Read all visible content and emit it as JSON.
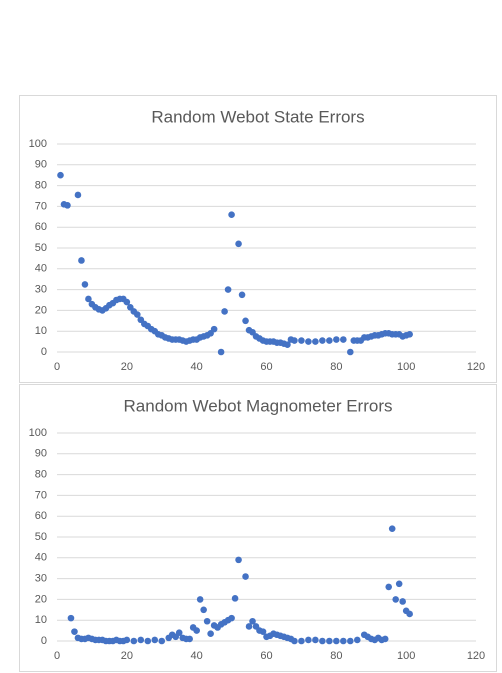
{
  "chart_data": [
    {
      "type": "scatter",
      "title": "Random Webot State Errors",
      "color": "#4472c4",
      "grid": true,
      "xlim": [
        0,
        120
      ],
      "xticks": [
        0,
        20,
        40,
        60,
        80,
        100,
        120
      ],
      "ylim": [
        0,
        100
      ],
      "yticks": [
        0,
        10,
        20,
        30,
        40,
        50,
        60,
        70,
        80,
        90,
        100
      ],
      "x": [
        1,
        2,
        3,
        6,
        7,
        8,
        9,
        10,
        11,
        12,
        13,
        14,
        15,
        16,
        17,
        18,
        19,
        20,
        21,
        22,
        23,
        24,
        25,
        26,
        27,
        28,
        29,
        30,
        31,
        32,
        33,
        34,
        35,
        36,
        37,
        38,
        39,
        40,
        41,
        42,
        43,
        44,
        45,
        47,
        48,
        49,
        50,
        52,
        53,
        54,
        55,
        56,
        57,
        58,
        59,
        60,
        61,
        62,
        63,
        64,
        65,
        66,
        67,
        68,
        70,
        72,
        74,
        76,
        78,
        80,
        82,
        84,
        85,
        86,
        87,
        88,
        89,
        90,
        91,
        92,
        93,
        94,
        95,
        96,
        97,
        98,
        99,
        100,
        101
      ],
      "values": [
        85,
        71,
        70.5,
        75.5,
        44,
        32.5,
        25.5,
        23,
        21.5,
        20.5,
        20,
        21,
        22.5,
        23.5,
        25,
        25.5,
        25.5,
        24,
        21.5,
        19.5,
        18,
        15.5,
        13.5,
        12.5,
        11,
        10,
        8.5,
        8,
        7,
        6.5,
        6,
        6,
        6,
        5.5,
        5,
        5.5,
        6,
        6,
        7,
        7.5,
        8,
        9,
        11,
        0,
        19.5,
        30,
        66,
        52,
        27.5,
        15,
        10.5,
        9.5,
        7.5,
        6.5,
        5.5,
        5,
        5,
        5,
        4.5,
        4.5,
        4,
        3.5,
        6,
        5.5,
        5.5,
        5,
        5,
        5.5,
        5.5,
        6,
        6,
        0,
        5.5,
        5.5,
        5.5,
        7,
        7,
        7.5,
        8,
        8,
        8.5,
        9,
        9,
        8.5,
        8.5,
        8.5,
        7.5,
        8,
        8.5
      ]
    },
    {
      "type": "scatter",
      "title": "Random Webot Magnometer Errors",
      "color": "#4472c4",
      "grid": true,
      "xlim": [
        0,
        120
      ],
      "xticks": [
        0,
        20,
        40,
        60,
        80,
        100,
        120
      ],
      "ylim": [
        0,
        100
      ],
      "yticks": [
        0,
        10,
        20,
        30,
        40,
        50,
        60,
        70,
        80,
        90,
        100
      ],
      "x": [
        4,
        5,
        6,
        7,
        8,
        9,
        10,
        11,
        12,
        13,
        14,
        15,
        16,
        17,
        18,
        19,
        20,
        22,
        24,
        26,
        28,
        30,
        32,
        33,
        34,
        35,
        36,
        37,
        38,
        39,
        40,
        41,
        42,
        43,
        44,
        45,
        46,
        47,
        48,
        49,
        50,
        51,
        52,
        54,
        55,
        56,
        57,
        58,
        59,
        60,
        61,
        62,
        63,
        64,
        65,
        66,
        67,
        68,
        70,
        72,
        74,
        76,
        78,
        80,
        82,
        84,
        86,
        88,
        89,
        90,
        91,
        92,
        93,
        94,
        95,
        96,
        97,
        98,
        99,
        100,
        101
      ],
      "values": [
        11,
        4.5,
        1.5,
        1,
        1,
        1.5,
        1,
        0.5,
        0.5,
        0.5,
        0,
        0,
        0,
        0.5,
        0,
        0,
        0.5,
        0,
        0.5,
        0,
        0.5,
        0,
        1.5,
        3,
        2,
        4,
        1.5,
        1,
        1,
        6.5,
        5,
        20,
        15,
        9.5,
        3.5,
        7.5,
        6.5,
        8,
        9,
        10,
        11,
        20.5,
        39,
        31,
        7,
        9.5,
        7,
        5,
        4.5,
        2,
        2.5,
        3.5,
        3,
        2.5,
        2,
        1.5,
        1,
        0,
        0,
        0.5,
        0.5,
        0,
        0,
        0,
        0,
        0,
        0.5,
        3,
        2,
        1,
        0.5,
        1.5,
        0.5,
        1,
        26,
        54,
        20,
        27.5,
        19,
        14.5,
        13
      ]
    }
  ]
}
